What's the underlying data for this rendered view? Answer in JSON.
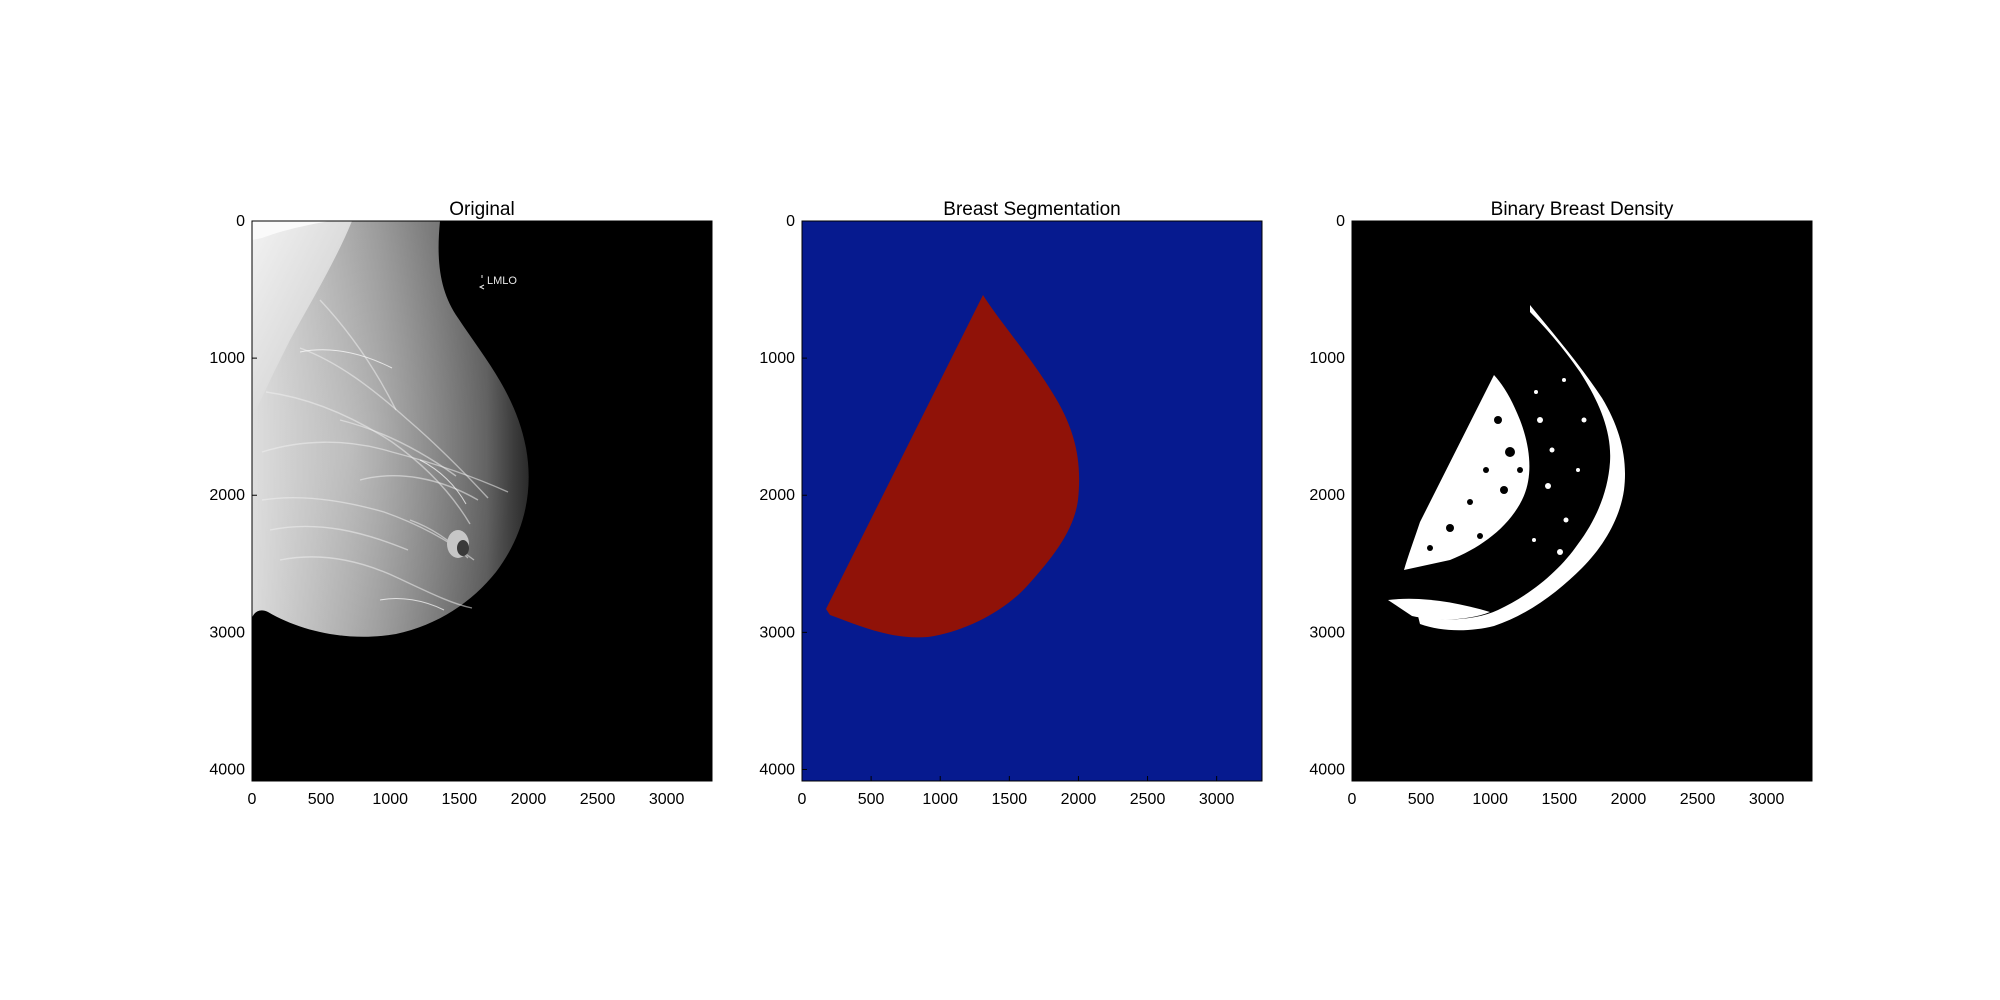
{
  "figure": {
    "panels": [
      {
        "id": "original",
        "title": "Original",
        "image_kind": "grayscale-mammogram",
        "view_annotation": "LMLO",
        "x_ticks": [
          "0",
          "500",
          "1000",
          "1500",
          "2000",
          "2500",
          "3000"
        ],
        "y_ticks": [
          "0",
          "1000",
          "2000",
          "3000",
          "4000"
        ]
      },
      {
        "id": "segmentation",
        "title": "Breast Segmentation",
        "image_kind": "two-class-label-map",
        "x_ticks": [
          "0",
          "500",
          "1000",
          "1500",
          "2000",
          "2500",
          "3000"
        ],
        "y_ticks": [
          "0",
          "1000",
          "2000",
          "3000",
          "4000"
        ]
      },
      {
        "id": "density",
        "title": "Binary Breast Density",
        "image_kind": "binary-mask",
        "x_ticks": [
          "0",
          "500",
          "1000",
          "1500",
          "2000",
          "2500",
          "3000"
        ],
        "y_ticks": [
          "0",
          "1000",
          "2000",
          "3000",
          "4000"
        ]
      }
    ],
    "axis_range": {
      "x": [
        0,
        3328
      ],
      "y": [
        0,
        4084
      ]
    },
    "colors": {
      "background_class": "#061a8f",
      "breast_class": "#901208",
      "mask_background": "#000000",
      "mask_dense": "#ffffff"
    }
  }
}
